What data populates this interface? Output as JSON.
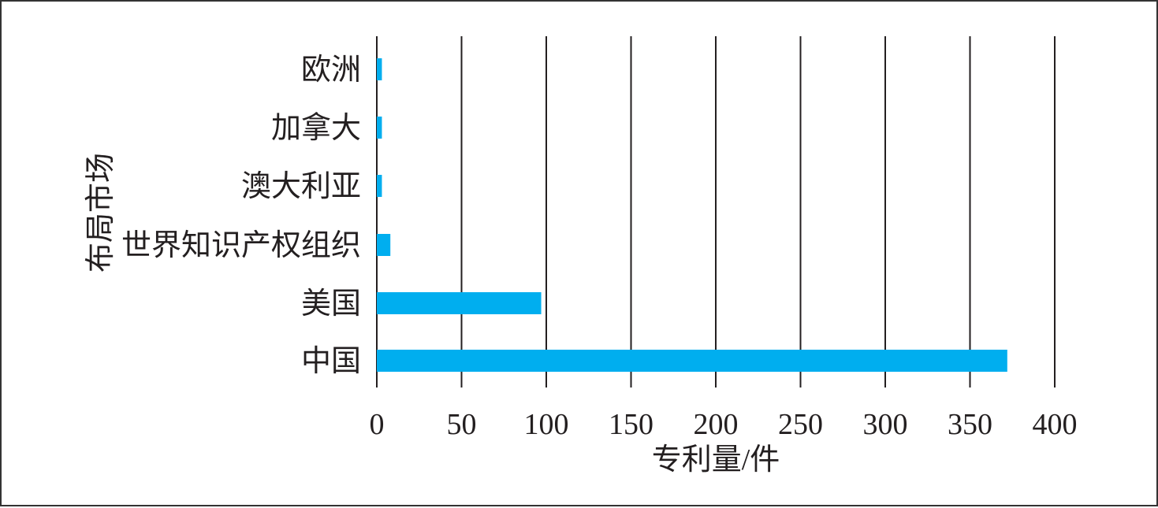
{
  "chart_data": {
    "type": "bar",
    "orientation": "horizontal",
    "categories": [
      "欧洲",
      "加拿大",
      "澳大利亚",
      "世界知识产权组织",
      "美国",
      "中国"
    ],
    "values": [
      3,
      3,
      3,
      8,
      97,
      372
    ],
    "xlabel": "专利量/件",
    "ylabel": "布局市场",
    "xlim": [
      0,
      400
    ],
    "xticks": [
      "0",
      "50",
      "100",
      "150",
      "200",
      "250",
      "300",
      "350",
      "400"
    ],
    "grid": "vertical",
    "bar_color": "#00aeef",
    "grid_color": "#231f20"
  }
}
